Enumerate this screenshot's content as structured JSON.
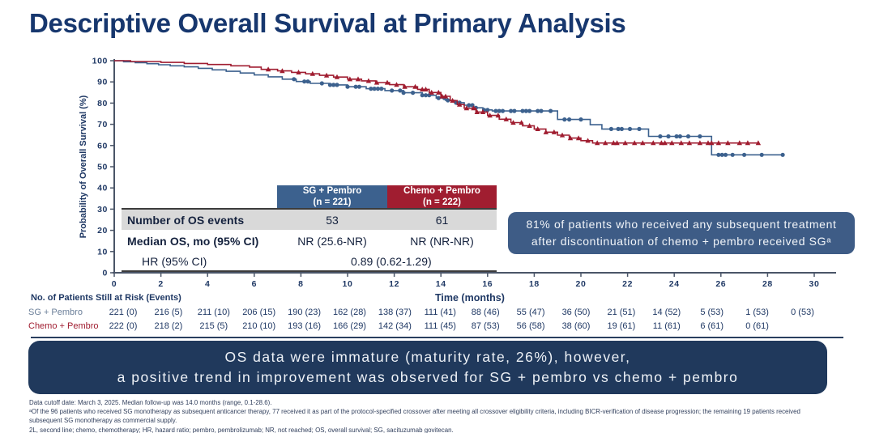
{
  "title": "Descriptive Overall Survival at Primary Analysis",
  "colors": {
    "title_navy": "#17376e",
    "sg_blue": "#3c618e",
    "chemo_red": "#a01d30",
    "banner_navy": "#20395c",
    "side_note_blue": "#3e5c86",
    "shaded_row_gray": "#d9d9d9",
    "axis_label_navy": "#1f3864"
  },
  "chart_data": {
    "type": "line",
    "subtype": "kaplan-meier-step",
    "xlabel": "Time (months)",
    "ylabel": "Probability of Overall Survival (%)",
    "xlim": [
      0,
      30
    ],
    "xticks": [
      0,
      2,
      4,
      6,
      8,
      10,
      12,
      14,
      16,
      18,
      20,
      22,
      24,
      26,
      28,
      30
    ],
    "ylim": [
      0,
      100
    ],
    "yticks": [
      0,
      10,
      20,
      30,
      40,
      50,
      60,
      70,
      80,
      90,
      100
    ],
    "grid": false,
    "series": [
      {
        "name": "SG + Pembro",
        "n": 221,
        "color": "#3c618e",
        "marker": "circle",
        "steps": [
          [
            0,
            100
          ],
          [
            0.4,
            99.5
          ],
          [
            0.9,
            99.1
          ],
          [
            1.4,
            98.6
          ],
          [
            1.9,
            98.1
          ],
          [
            2.4,
            97.6
          ],
          [
            3.0,
            97.1
          ],
          [
            3.6,
            96.4
          ],
          [
            4.2,
            95.7
          ],
          [
            4.8,
            95.0
          ],
          [
            5.4,
            94.2
          ],
          [
            6.0,
            93.3
          ],
          [
            6.6,
            92.4
          ],
          [
            7.2,
            91.3
          ],
          [
            7.8,
            90.2
          ],
          [
            8.4,
            89.3
          ],
          [
            9.2,
            88.6
          ],
          [
            10.0,
            87.7
          ],
          [
            10.8,
            86.8
          ],
          [
            11.6,
            85.9
          ],
          [
            12.4,
            84.9
          ],
          [
            13.2,
            83.7
          ],
          [
            13.8,
            82.4
          ],
          [
            14.2,
            81.3
          ],
          [
            14.6,
            80.2
          ],
          [
            15.0,
            79.0
          ],
          [
            15.4,
            77.8
          ],
          [
            15.8,
            76.8
          ],
          [
            16.2,
            76.3
          ],
          [
            19.0,
            72.3
          ],
          [
            20.4,
            69.8
          ],
          [
            20.9,
            67.8
          ],
          [
            22.9,
            64.3
          ],
          [
            25.6,
            55.6
          ],
          [
            28.7,
            55.6
          ]
        ],
        "censor_times": [
          7.7,
          8.15,
          8.3,
          8.9,
          9.25,
          9.4,
          9.55,
          10.0,
          10.35,
          10.5,
          11.0,
          11.15,
          11.3,
          11.45,
          11.9,
          12.25,
          12.4,
          12.8,
          13.2,
          13.35,
          13.5,
          13.9,
          14.15,
          14.3,
          14.65,
          14.8,
          15.2,
          15.35,
          15.5,
          15.85,
          16.0,
          16.35,
          16.5,
          16.65,
          17.0,
          17.15,
          17.5,
          17.65,
          17.8,
          18.15,
          18.3,
          18.7,
          19.3,
          19.5,
          20.0,
          21.3,
          21.6,
          21.75,
          22.1,
          22.5,
          23.4,
          23.75,
          24.1,
          24.25,
          24.6,
          25.1,
          25.9,
          26.05,
          26.2,
          26.5,
          27.0,
          27.75,
          28.65
        ]
      },
      {
        "name": "Chemo + Pembro",
        "n": 222,
        "color": "#a01d30",
        "marker": "triangle",
        "steps": [
          [
            0,
            100
          ],
          [
            0.7,
            99.6
          ],
          [
            2.0,
            99.2
          ],
          [
            3.0,
            98.7
          ],
          [
            4.0,
            98.2
          ],
          [
            5.0,
            97.6
          ],
          [
            5.8,
            97.0
          ],
          [
            6.3,
            95.9
          ],
          [
            7.0,
            95.2
          ],
          [
            7.6,
            94.5
          ],
          [
            8.2,
            93.8
          ],
          [
            8.8,
            93.1
          ],
          [
            9.4,
            92.3
          ],
          [
            10.0,
            91.3
          ],
          [
            10.6,
            90.5
          ],
          [
            11.2,
            89.7
          ],
          [
            11.8,
            88.7
          ],
          [
            12.4,
            87.7
          ],
          [
            13.0,
            86.5
          ],
          [
            13.5,
            85.0
          ],
          [
            14.0,
            83.2
          ],
          [
            14.4,
            81.2
          ],
          [
            14.7,
            79.3
          ],
          [
            15.0,
            77.6
          ],
          [
            15.5,
            75.8
          ],
          [
            16.0,
            74.2
          ],
          [
            16.5,
            72.4
          ],
          [
            17.0,
            70.8
          ],
          [
            17.5,
            69.3
          ],
          [
            18.0,
            67.8
          ],
          [
            18.5,
            66.3
          ],
          [
            19.0,
            64.9
          ],
          [
            19.5,
            63.5
          ],
          [
            20.0,
            62.3
          ],
          [
            20.5,
            61.2
          ],
          [
            27.6,
            61.2
          ]
        ],
        "censor_times": [
          6.6,
          7.2,
          7.9,
          8.5,
          9.1,
          9.55,
          10.1,
          10.45,
          10.9,
          11.25,
          11.7,
          12.1,
          12.45,
          12.9,
          13.2,
          13.35,
          13.6,
          13.9,
          14.05,
          14.2,
          14.5,
          14.8,
          15.1,
          15.4,
          15.55,
          15.8,
          16.1,
          16.45,
          16.8,
          17.1,
          17.45,
          17.8,
          18.15,
          18.5,
          18.85,
          19.2,
          19.55,
          19.9,
          20.3,
          20.7,
          21.05,
          21.4,
          21.55,
          21.9,
          22.3,
          22.65,
          23.1,
          23.45,
          23.6,
          23.9,
          24.3,
          24.65,
          25.1,
          25.45,
          25.6,
          25.9,
          26.3,
          26.8,
          27.15,
          27.6
        ]
      }
    ]
  },
  "stats_table": {
    "col_headers": [
      {
        "line1": "SG + Pembro",
        "line2": "(n = 221)"
      },
      {
        "line1": "Chemo + Pembro",
        "line2": "(n = 222)"
      }
    ],
    "rows": [
      {
        "label": "Number of OS events",
        "values": [
          "53",
          "61"
        ]
      },
      {
        "label": "Median OS, mo (95% CI)",
        "values": [
          "NR (25.6-NR)",
          "NR (NR-NR)"
        ]
      },
      {
        "label": "HR (95% CI)",
        "span_value": "0.89 (0.62-1.29)"
      }
    ]
  },
  "side_note": {
    "line1": "81% of patients who received any subsequent treatment",
    "line2": "after discontinuation of chemo + pembro received SGᵃ"
  },
  "risk_table": {
    "title": "No. of Patients Still at Risk (Events)",
    "x_axis_label": "Time (months)",
    "rows": [
      {
        "label": "SG + Pembro",
        "label_color": "#6b7f99",
        "values": [
          "221 (0)",
          "216 (5)",
          "211 (10)",
          "206 (15)",
          "190 (23)",
          "162 (28)",
          "138 (37)",
          "111 (41)",
          "88 (46)",
          "55 (47)",
          "36 (50)",
          "21 (51)",
          "14 (52)",
          "5 (53)",
          "1 (53)",
          "0 (53)"
        ]
      },
      {
        "label": "Chemo + Pembro",
        "label_color": "#a01d30",
        "values": [
          "222 (0)",
          "218 (2)",
          "215 (5)",
          "210 (10)",
          "193 (16)",
          "166 (29)",
          "142 (34)",
          "111 (45)",
          "87 (53)",
          "56 (58)",
          "38 (60)",
          "19 (61)",
          "11 (61)",
          "6 (61)",
          "0 (61)"
        ]
      }
    ]
  },
  "banner": {
    "line1": "OS data were immature (maturity rate, 26%), however,",
    "line2": "a positive trend in improvement was observed for SG + pembro vs chemo + pembro"
  },
  "footnotes": [
    "Data cutoff date: March 3, 2025. Median follow-up was 14.0 months (range, 0.1-28.6).",
    "ᵃOf the 96 patients who received SG monotherapy as subsequent anticancer therapy, 77 received it as part of the protocol-specified crossover after meeting all crossover eligibility criteria, including BICR-verification of disease progression; the remaining 19 patients received",
    "subsequent SG monotherapy as commercial supply.",
    "2L, second line; chemo, chemotherapy; HR, hazard ratio; pembro, pembrolizumab; NR, not reached; OS, overall survival; SG, sacituzumab govitecan."
  ]
}
